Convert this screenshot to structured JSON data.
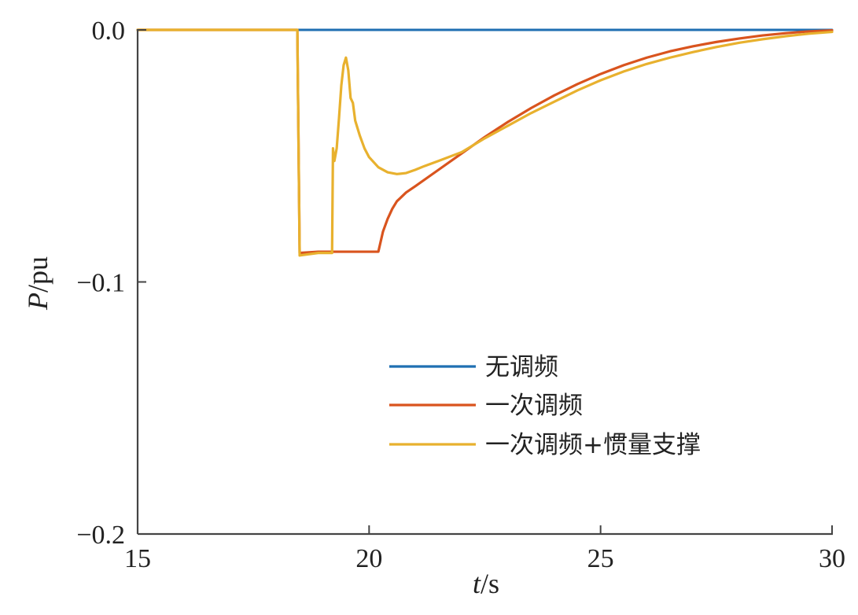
{
  "chart_data": {
    "type": "line",
    "title": "",
    "xlabel": {
      "symbol": "t",
      "unit": "/s"
    },
    "ylabel": {
      "symbol": "P",
      "unit": "/pu"
    },
    "xlim": [
      15,
      30
    ],
    "ylim": [
      -0.2,
      0.0
    ],
    "xticks": [
      15,
      20,
      25,
      30
    ],
    "yticks": [
      0.0,
      -0.1,
      -0.2
    ],
    "xtick_labels": [
      "15",
      "20",
      "25",
      "30"
    ],
    "ytick_labels": [
      "0.0",
      "−0.1",
      "−0.2"
    ],
    "grid": false,
    "legend_position": "center-right",
    "series": [
      {
        "name": "无调频",
        "color": "#1f6fb2",
        "x": [
          15,
          30
        ],
        "y": [
          0.0,
          0.0
        ]
      },
      {
        "name": "一次调频",
        "color": "#d9541e",
        "x": [
          15,
          18.45,
          18.5,
          18.9,
          19.5,
          20.0,
          20.2,
          20.3,
          20.4,
          20.5,
          20.6,
          20.8,
          21.0,
          21.5,
          22.0,
          22.5,
          23.0,
          23.5,
          24.0,
          24.5,
          25.0,
          25.5,
          26.0,
          26.5,
          27.0,
          27.5,
          28.0,
          28.5,
          29.0,
          29.5,
          30.0
        ],
        "y": [
          0.0,
          0.0,
          -0.0885,
          -0.088,
          -0.088,
          -0.088,
          -0.088,
          -0.08,
          -0.075,
          -0.071,
          -0.068,
          -0.0645,
          -0.062,
          -0.0555,
          -0.049,
          -0.0425,
          -0.0365,
          -0.031,
          -0.026,
          -0.0215,
          -0.0175,
          -0.014,
          -0.011,
          -0.0085,
          -0.0065,
          -0.0048,
          -0.0034,
          -0.0022,
          -0.0013,
          -0.0006,
          -0.0002
        ]
      },
      {
        "name": "一次调频+惯量支撑",
        "color": "#e8b12e",
        "x": [
          15,
          18.45,
          18.5,
          18.9,
          19.2,
          19.22,
          19.25,
          19.3,
          19.35,
          19.4,
          19.45,
          19.5,
          19.55,
          19.6,
          19.65,
          19.7,
          19.8,
          19.9,
          20.0,
          20.2,
          20.4,
          20.6,
          20.8,
          21.0,
          21.2,
          21.5,
          22.0,
          22.5,
          23.0,
          23.5,
          24.0,
          24.5,
          25.0,
          25.5,
          26.0,
          26.5,
          27.0,
          27.5,
          28.0,
          28.5,
          29.0,
          29.5,
          30.0
        ],
        "y": [
          0.0,
          0.0,
          -0.0895,
          -0.0885,
          -0.0885,
          -0.047,
          -0.052,
          -0.047,
          -0.035,
          -0.022,
          -0.014,
          -0.011,
          -0.016,
          -0.027,
          -0.029,
          -0.036,
          -0.042,
          -0.047,
          -0.0505,
          -0.0545,
          -0.0565,
          -0.0572,
          -0.0568,
          -0.0555,
          -0.054,
          -0.052,
          -0.0485,
          -0.043,
          -0.038,
          -0.033,
          -0.0285,
          -0.024,
          -0.02,
          -0.0165,
          -0.0135,
          -0.011,
          -0.0088,
          -0.0068,
          -0.0051,
          -0.0037,
          -0.0025,
          -0.0015,
          -0.0008
        ]
      }
    ]
  }
}
